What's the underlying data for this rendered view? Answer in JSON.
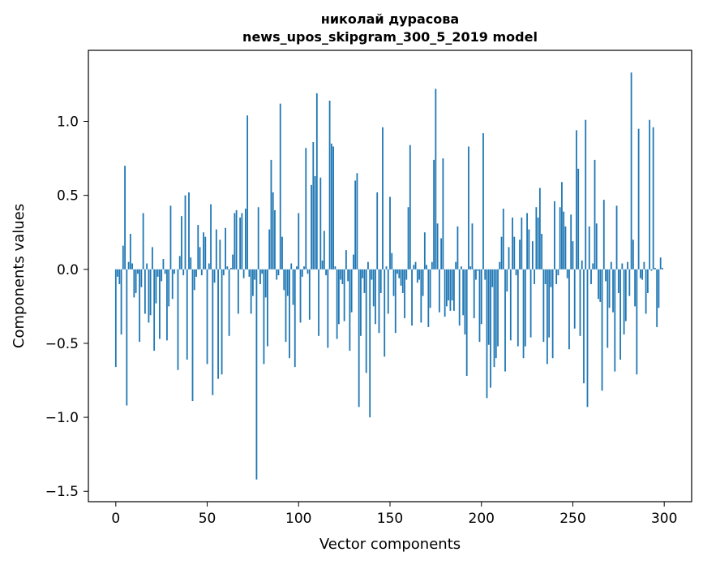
{
  "chart_data": {
    "type": "bar",
    "title": "николай дурасова",
    "subtitle": "news_upos_skipgram_300_5_2019 model",
    "xlabel": "Vector components",
    "ylabel": "Components values",
    "xlim": [
      -15,
      315
    ],
    "ylim": [
      -1.57,
      1.48
    ],
    "xticks": [
      0,
      50,
      100,
      150,
      200,
      250,
      300
    ],
    "xtick_labels": [
      "0",
      "50",
      "100",
      "150",
      "200",
      "250",
      "300"
    ],
    "yticks": [
      -1.5,
      -1.0,
      -0.5,
      0.0,
      0.5,
      1.0
    ],
    "ytick_labels": [
      "−1.5",
      "−1.0",
      "−0.5",
      "0.0",
      "0.5",
      "1.0"
    ],
    "grid": false,
    "bar_color": "#1f77b4",
    "series": [
      {
        "x_start": 0,
        "values": [
          -0.66,
          -0.05,
          -0.1,
          -0.44,
          0.16,
          0.7,
          -0.92,
          0.05,
          0.24,
          0.04,
          -0.19,
          -0.16,
          -0.03,
          -0.49,
          -0.12,
          0.38,
          -0.3,
          0.04,
          -0.36,
          -0.31,
          0.15,
          -0.55,
          -0.23,
          -0.05,
          -0.47,
          -0.08,
          0.07,
          -0.03,
          -0.48,
          -0.25,
          0.43,
          -0.2,
          -0.03,
          0.0,
          -0.68,
          0.09,
          0.36,
          -0.04,
          0.5,
          -0.61,
          0.52,
          0.08,
          -0.89,
          -0.14,
          -0.05,
          0.3,
          0.15,
          -0.04,
          0.25,
          0.22,
          -0.64,
          0.04,
          0.44,
          -0.85,
          -0.09,
          0.27,
          -0.74,
          0.2,
          -0.71,
          -0.04,
          0.28,
          0.02,
          -0.45,
          0.01,
          0.1,
          0.38,
          0.4,
          -0.3,
          0.35,
          0.38,
          -0.06,
          0.41,
          1.04,
          -0.05,
          -0.3,
          -0.18,
          -0.07,
          -1.42,
          0.42,
          -0.1,
          -0.03,
          -0.64,
          -0.19,
          -0.52,
          0.27,
          0.74,
          0.52,
          0.4,
          -0.07,
          -0.04,
          1.12,
          0.22,
          -0.14,
          -0.49,
          -0.18,
          -0.6,
          0.04,
          -0.24,
          -0.66,
          0.02,
          0.38,
          -0.36,
          -0.05,
          0.02,
          0.82,
          -0.03,
          -0.34,
          0.57,
          0.86,
          0.63,
          1.19,
          -0.45,
          0.62,
          0.06,
          0.26,
          -0.04,
          -0.53,
          1.14,
          0.85,
          0.83,
          0.02,
          -0.47,
          -0.37,
          -0.07,
          -0.1,
          -0.35,
          0.13,
          -0.08,
          -0.55,
          -0.29,
          0.1,
          0.6,
          0.65,
          -0.93,
          -0.45,
          -0.06,
          -0.16,
          -0.7,
          0.05,
          -1.0,
          -0.07,
          -0.25,
          -0.37,
          0.52,
          -0.43,
          -0.16,
          0.96,
          -0.59,
          0.02,
          -0.3,
          0.49,
          0.11,
          -0.18,
          -0.43,
          -0.03,
          -0.06,
          -0.11,
          -0.16,
          -0.33,
          -0.07,
          0.42,
          0.84,
          -0.38,
          0.03,
          0.05,
          -0.09,
          -0.07,
          -0.36,
          -0.18,
          0.25,
          0.03,
          -0.39,
          -0.26,
          0.05,
          0.74,
          1.22,
          0.31,
          -0.29,
          0.21,
          0.75,
          -0.32,
          -0.25,
          -0.21,
          -0.28,
          -0.21,
          -0.28,
          0.05,
          0.29,
          -0.38,
          0.02,
          -0.31,
          -0.44,
          -0.72,
          0.83,
          0.02,
          0.31,
          -0.33,
          -0.07,
          -0.01,
          -0.49,
          -0.37,
          0.92,
          -0.07,
          -0.87,
          -0.51,
          -0.8,
          -0.12,
          -0.66,
          -0.6,
          -0.52,
          0.05,
          0.22,
          0.41,
          -0.69,
          -0.15,
          0.15,
          -0.48,
          0.35,
          0.22,
          -0.04,
          -0.52,
          0.2,
          0.35,
          -0.6,
          -0.52,
          0.38,
          0.27,
          -0.46,
          0.19,
          -0.1,
          0.42,
          0.35,
          0.55,
          0.24,
          -0.49,
          -0.1,
          -0.64,
          -0.46,
          -0.12,
          -0.6,
          0.46,
          -0.1,
          -0.04,
          0.42,
          0.59,
          0.39,
          0.29,
          -0.06,
          -0.54,
          0.37,
          0.19,
          -0.4,
          0.94,
          0.68,
          -0.45,
          0.06,
          -0.77,
          1.01,
          -0.93,
          0.29,
          -0.1,
          0.04,
          0.74,
          0.31,
          -0.2,
          -0.22,
          -0.82,
          0.47,
          -0.08,
          -0.53,
          -0.26,
          0.05,
          -0.29,
          -0.69,
          0.43,
          -0.16,
          -0.61,
          0.04,
          -0.44,
          -0.35,
          0.05,
          -0.18,
          1.33,
          0.2,
          -0.25,
          -0.71,
          0.95,
          -0.06,
          -0.07,
          0.05,
          -0.3,
          -0.16,
          1.01,
          -0.01,
          0.96,
          0.01,
          -0.39,
          -0.26,
          0.08,
          0.01
        ]
      }
    ]
  }
}
